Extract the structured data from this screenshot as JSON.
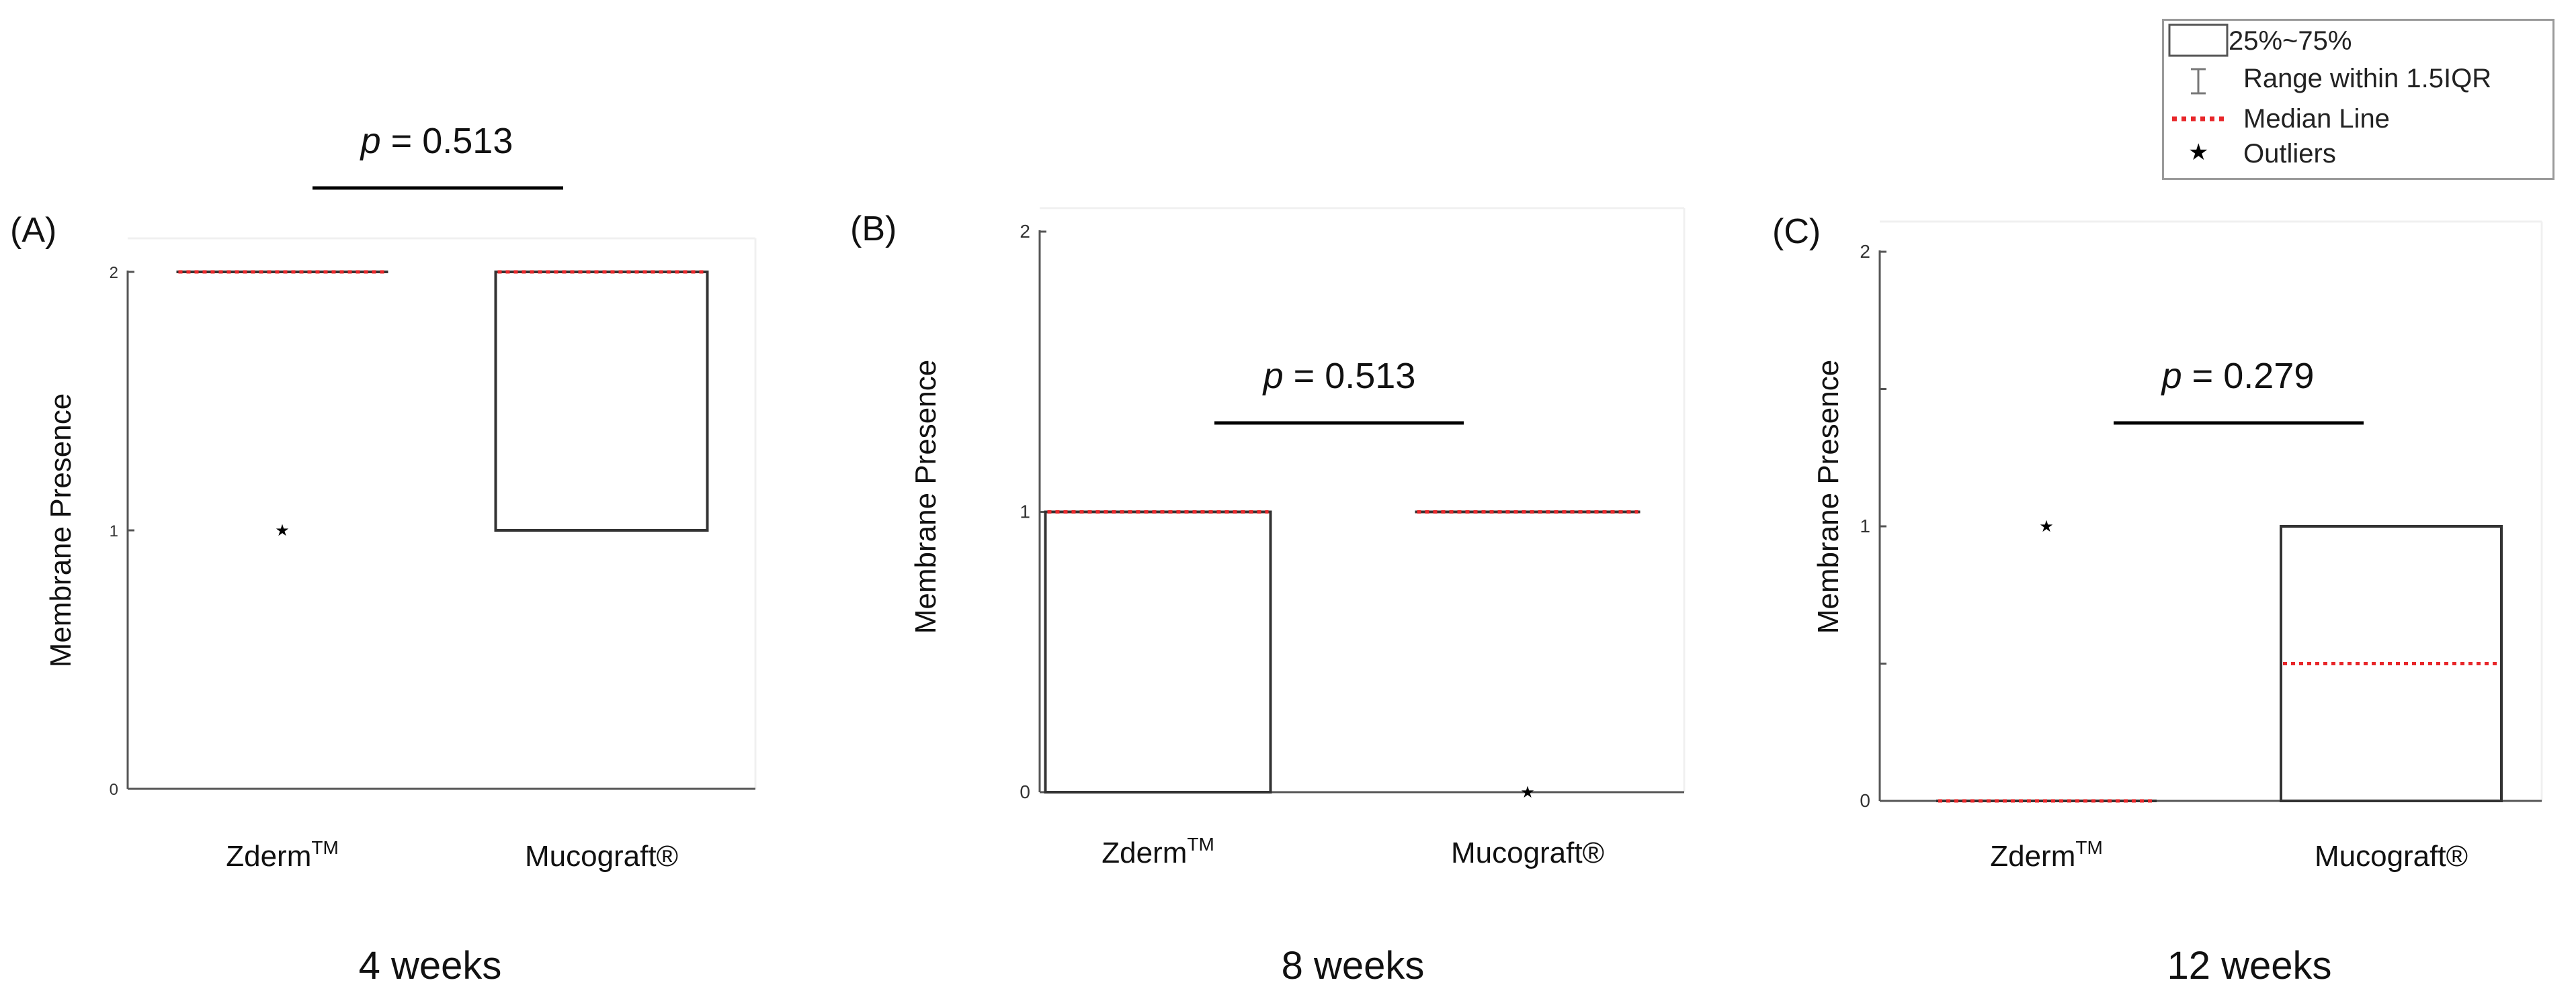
{
  "legend": {
    "items": [
      {
        "key": "box",
        "label": "25%~75%"
      },
      {
        "key": "whisker",
        "label": "Range within 1.5IQR"
      },
      {
        "key": "median",
        "label": "Median Line"
      },
      {
        "key": "outlier",
        "label": "Outliers",
        "symbol": "★"
      }
    ]
  },
  "colors": {
    "axis": "#000000",
    "box": "#333333",
    "median": "#e8272a",
    "sig": "#000000",
    "legend_border": "#9a9a9a"
  },
  "chart_data": [
    {
      "type": "box",
      "panel": "(A)",
      "title": "4 weeks",
      "ylabel": "Membrane Presence",
      "ylim": [
        0,
        2
      ],
      "yticks": [
        "0",
        "1",
        "2"
      ],
      "categories": [
        {
          "name": "Zderm",
          "sup": "TM"
        },
        {
          "name": "Mucograft®",
          "sup": ""
        }
      ],
      "boxes": [
        {
          "q1": 2,
          "median": 2,
          "q3": 2,
          "outliers": [
            1
          ]
        },
        {
          "q1": 1,
          "median": 2,
          "q3": 2,
          "outliers": []
        }
      ],
      "p_value": "0.513",
      "p_label": "p"
    },
    {
      "type": "box",
      "panel": "(B)",
      "title": "8 weeks",
      "ylabel": "Membrane Presence",
      "ylim": [
        0,
        2
      ],
      "yticks": [
        "0",
        "1",
        "2"
      ],
      "categories": [
        {
          "name": "Zderm",
          "sup": "TM"
        },
        {
          "name": "Mucograft®",
          "sup": ""
        }
      ],
      "boxes": [
        {
          "q1": 0,
          "median": 1,
          "q3": 1,
          "outliers": []
        },
        {
          "q1": 1,
          "median": 1,
          "q3": 1,
          "outliers": [
            0
          ]
        }
      ],
      "p_value": "0.513",
      "p_label": "p"
    },
    {
      "type": "box",
      "panel": "(C)",
      "title": "12 weeks",
      "ylabel": "Membrane Presence",
      "ylim": [
        0,
        2
      ],
      "yticks": [
        "0",
        "1",
        "2"
      ],
      "categories": [
        {
          "name": "Zderm",
          "sup": "TM"
        },
        {
          "name": "Mucograft®",
          "sup": ""
        }
      ],
      "boxes": [
        {
          "q1": 0,
          "median": 0,
          "q3": 0,
          "outliers": [
            1
          ]
        },
        {
          "q1": 0,
          "median": 0.5,
          "q3": 1,
          "outliers": []
        }
      ],
      "p_value": "0.279",
      "p_label": "p"
    }
  ]
}
